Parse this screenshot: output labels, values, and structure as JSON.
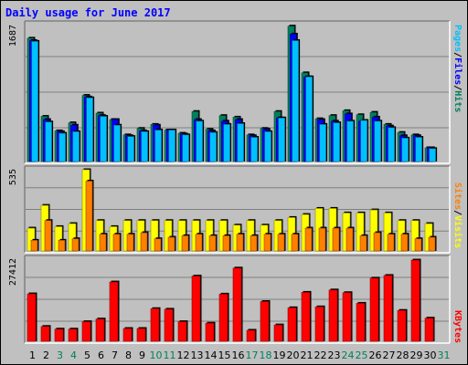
{
  "title": "Daily usage for June 2017",
  "colors": {
    "background": "#c0c0c0",
    "hits": "#00805c",
    "files": "#0000ff",
    "pages": "#00c0ff",
    "visits": "#ffff00",
    "sites": "#ff8000",
    "kbytes": "#ff0000",
    "weekday_label": "#000000",
    "weekend_label": "#00805c"
  },
  "chart_data": [
    {
      "type": "bar",
      "panel": "hits-files-pages",
      "ymax_label": "1687",
      "ylim": [
        0,
        1687
      ],
      "legend": [
        "Pages",
        "/",
        "Files",
        "/",
        "Hits"
      ],
      "legend_placement": "right",
      "categories": [
        "1",
        "2",
        "3",
        "4",
        "5",
        "6",
        "7",
        "8",
        "9",
        "10",
        "11",
        "12",
        "13",
        "14",
        "15",
        "16",
        "17",
        "18",
        "19",
        "20",
        "21",
        "22",
        "23",
        "24",
        "25",
        "26",
        "27",
        "28",
        "29",
        "30",
        "31"
      ],
      "series": [
        {
          "name": "Hits",
          "values": [
            1530,
            560,
            380,
            480,
            820,
            600,
            520,
            330,
            410,
            460,
            390,
            350,
            620,
            400,
            570,
            550,
            330,
            410,
            620,
            1680,
            1100,
            530,
            570,
            630,
            580,
            610,
            460,
            360,
            330,
            170,
            0
          ]
        },
        {
          "name": "Files",
          "values": [
            1500,
            520,
            370,
            450,
            800,
            570,
            520,
            320,
            380,
            450,
            390,
            340,
            520,
            380,
            500,
            520,
            320,
            400,
            540,
            1580,
            1050,
            520,
            500,
            590,
            500,
            550,
            440,
            320,
            320,
            170,
            0
          ]
        },
        {
          "name": "Pages",
          "values": [
            1490,
            490,
            350,
            370,
            790,
            560,
            450,
            310,
            370,
            390,
            390,
            330,
            500,
            360,
            460,
            470,
            300,
            370,
            540,
            1500,
            1050,
            460,
            480,
            500,
            510,
            500,
            420,
            290,
            300,
            160,
            0
          ]
        }
      ]
    },
    {
      "type": "bar",
      "panel": "visits-sites",
      "ymax_label": "535",
      "ylim": [
        0,
        535
      ],
      "legend": [
        "Sites",
        "/",
        "Visits"
      ],
      "legend_placement": "right",
      "categories": [
        "1",
        "2",
        "3",
        "4",
        "5",
        "6",
        "7",
        "8",
        "9",
        "10",
        "11",
        "12",
        "13",
        "14",
        "15",
        "16",
        "17",
        "18",
        "19",
        "20",
        "21",
        "22",
        "23",
        "24",
        "25",
        "26",
        "27",
        "28",
        "29",
        "30",
        "31"
      ],
      "series": [
        {
          "name": "Visits",
          "values": [
            150,
            300,
            160,
            180,
            535,
            200,
            160,
            200,
            200,
            200,
            200,
            200,
            200,
            200,
            200,
            170,
            200,
            170,
            200,
            220,
            240,
            280,
            280,
            250,
            250,
            270,
            250,
            200,
            200,
            180,
            0
          ]
        },
        {
          "name": "Sites",
          "values": [
            70,
            200,
            70,
            80,
            460,
            110,
            110,
            110,
            120,
            80,
            90,
            100,
            110,
            100,
            100,
            110,
            100,
            110,
            110,
            110,
            150,
            150,
            150,
            150,
            100,
            120,
            110,
            110,
            80,
            90,
            0
          ]
        }
      ]
    },
    {
      "type": "bar",
      "panel": "kbytes",
      "ymax_label": "27412",
      "ylim": [
        0,
        27412
      ],
      "legend": [
        "KBytes"
      ],
      "legend_placement": "right",
      "categories": [
        "1",
        "2",
        "3",
        "4",
        "5",
        "6",
        "7",
        "8",
        "9",
        "10",
        "11",
        "12",
        "13",
        "14",
        "15",
        "16",
        "17",
        "18",
        "19",
        "20",
        "21",
        "22",
        "23",
        "24",
        "25",
        "26",
        "27",
        "28",
        "29",
        "30",
        "31"
      ],
      "series": [
        {
          "name": "KBytes",
          "values": [
            16000,
            5000,
            4100,
            4100,
            6600,
            7500,
            20000,
            4300,
            4300,
            11000,
            10800,
            6600,
            22000,
            6100,
            15900,
            24700,
            3700,
            13400,
            5500,
            11300,
            16500,
            11600,
            17300,
            16400,
            12800,
            21300,
            22200,
            10400,
            27400,
            7800,
            0
          ]
        }
      ]
    }
  ],
  "x_labels": [
    {
      "text": "1",
      "weekend": false
    },
    {
      "text": "2",
      "weekend": false
    },
    {
      "text": "3",
      "weekend": true
    },
    {
      "text": "4",
      "weekend": true
    },
    {
      "text": "5",
      "weekend": false
    },
    {
      "text": "6",
      "weekend": false
    },
    {
      "text": "7",
      "weekend": false
    },
    {
      "text": "8",
      "weekend": false
    },
    {
      "text": "9",
      "weekend": false
    },
    {
      "text": "10",
      "weekend": true
    },
    {
      "text": "11",
      "weekend": true
    },
    {
      "text": "12",
      "weekend": false
    },
    {
      "text": "13",
      "weekend": false
    },
    {
      "text": "14",
      "weekend": false
    },
    {
      "text": "15",
      "weekend": false
    },
    {
      "text": "16",
      "weekend": false
    },
    {
      "text": "17",
      "weekend": true
    },
    {
      "text": "18",
      "weekend": true
    },
    {
      "text": "19",
      "weekend": false
    },
    {
      "text": "20",
      "weekend": false
    },
    {
      "text": "21",
      "weekend": false
    },
    {
      "text": "22",
      "weekend": false
    },
    {
      "text": "23",
      "weekend": false
    },
    {
      "text": "24",
      "weekend": true
    },
    {
      "text": "25",
      "weekend": true
    },
    {
      "text": "26",
      "weekend": false
    },
    {
      "text": "27",
      "weekend": false
    },
    {
      "text": "28",
      "weekend": false
    },
    {
      "text": "29",
      "weekend": false
    },
    {
      "text": "30",
      "weekend": false
    },
    {
      "text": "31",
      "weekend": true
    }
  ]
}
